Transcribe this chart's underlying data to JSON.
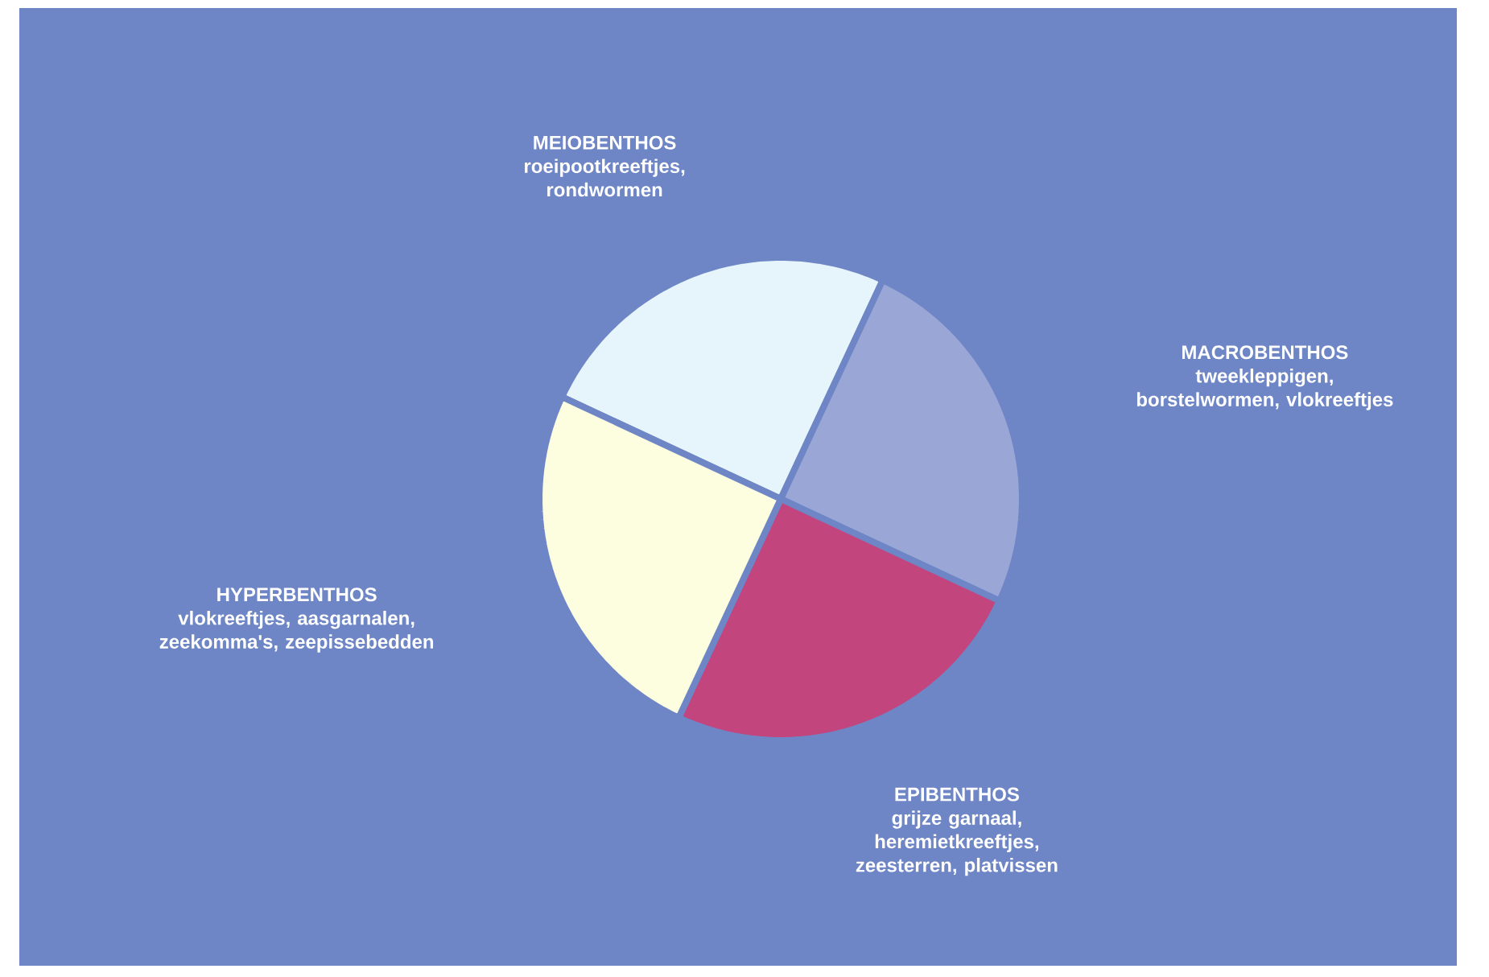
{
  "chart_data": {
    "type": "pie",
    "categories": [
      "MEIOBENTHOS",
      "MACROBENTHOS",
      "EPIBENTHOS",
      "HYPERBENTHOS"
    ],
    "values": [
      25,
      25,
      25,
      25
    ],
    "colors": [
      "#e6f4fb",
      "#9aa6d6",
      "#c2457e",
      "#fdfde0"
    ],
    "annotations": [
      "roeipootkreeftjes, rondwormen",
      "tweekleppigen, borstelwormen, vlokreeftjes",
      "grijze garnaal, heremietkreeftjes, zeesterren, platvissen",
      "vlokreeftjes, aasgarnalen, zeekomma's, zeepissebedden"
    ]
  }
}
